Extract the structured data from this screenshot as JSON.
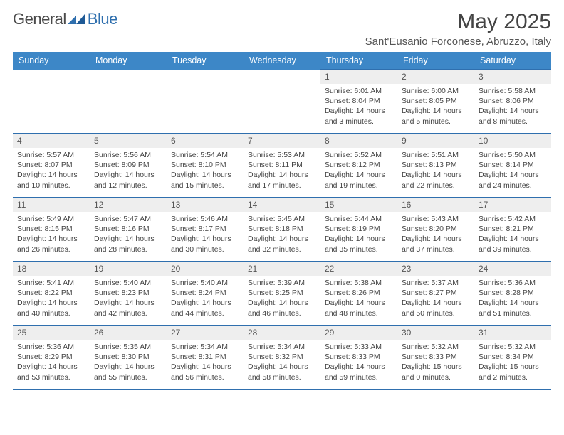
{
  "logo": {
    "word1": "General",
    "word2": "Blue"
  },
  "title": "May 2025",
  "location": "Sant'Eusanio Forconese, Abruzzo, Italy",
  "colors": {
    "header_bg": "#3d87c7",
    "border": "#2f6fae",
    "daynum_bg": "#eeeeee",
    "text": "#444444",
    "logo_gray": "#4a4a4a",
    "logo_blue": "#2f6fae"
  },
  "typography": {
    "month_title_pt": 30,
    "location_pt": 15,
    "header_pt": 12.5,
    "daynum_pt": 12,
    "body_pt": 10.5
  },
  "dayHeaders": [
    "Sunday",
    "Monday",
    "Tuesday",
    "Wednesday",
    "Thursday",
    "Friday",
    "Saturday"
  ],
  "weeks": [
    [
      null,
      null,
      null,
      null,
      {
        "n": "1",
        "sr": "6:01 AM",
        "ss": "8:04 PM",
        "dl": "14 hours and 3 minutes."
      },
      {
        "n": "2",
        "sr": "6:00 AM",
        "ss": "8:05 PM",
        "dl": "14 hours and 5 minutes."
      },
      {
        "n": "3",
        "sr": "5:58 AM",
        "ss": "8:06 PM",
        "dl": "14 hours and 8 minutes."
      }
    ],
    [
      {
        "n": "4",
        "sr": "5:57 AM",
        "ss": "8:07 PM",
        "dl": "14 hours and 10 minutes."
      },
      {
        "n": "5",
        "sr": "5:56 AM",
        "ss": "8:09 PM",
        "dl": "14 hours and 12 minutes."
      },
      {
        "n": "6",
        "sr": "5:54 AM",
        "ss": "8:10 PM",
        "dl": "14 hours and 15 minutes."
      },
      {
        "n": "7",
        "sr": "5:53 AM",
        "ss": "8:11 PM",
        "dl": "14 hours and 17 minutes."
      },
      {
        "n": "8",
        "sr": "5:52 AM",
        "ss": "8:12 PM",
        "dl": "14 hours and 19 minutes."
      },
      {
        "n": "9",
        "sr": "5:51 AM",
        "ss": "8:13 PM",
        "dl": "14 hours and 22 minutes."
      },
      {
        "n": "10",
        "sr": "5:50 AM",
        "ss": "8:14 PM",
        "dl": "14 hours and 24 minutes."
      }
    ],
    [
      {
        "n": "11",
        "sr": "5:49 AM",
        "ss": "8:15 PM",
        "dl": "14 hours and 26 minutes."
      },
      {
        "n": "12",
        "sr": "5:47 AM",
        "ss": "8:16 PM",
        "dl": "14 hours and 28 minutes."
      },
      {
        "n": "13",
        "sr": "5:46 AM",
        "ss": "8:17 PM",
        "dl": "14 hours and 30 minutes."
      },
      {
        "n": "14",
        "sr": "5:45 AM",
        "ss": "8:18 PM",
        "dl": "14 hours and 32 minutes."
      },
      {
        "n": "15",
        "sr": "5:44 AM",
        "ss": "8:19 PM",
        "dl": "14 hours and 35 minutes."
      },
      {
        "n": "16",
        "sr": "5:43 AM",
        "ss": "8:20 PM",
        "dl": "14 hours and 37 minutes."
      },
      {
        "n": "17",
        "sr": "5:42 AM",
        "ss": "8:21 PM",
        "dl": "14 hours and 39 minutes."
      }
    ],
    [
      {
        "n": "18",
        "sr": "5:41 AM",
        "ss": "8:22 PM",
        "dl": "14 hours and 40 minutes."
      },
      {
        "n": "19",
        "sr": "5:40 AM",
        "ss": "8:23 PM",
        "dl": "14 hours and 42 minutes."
      },
      {
        "n": "20",
        "sr": "5:40 AM",
        "ss": "8:24 PM",
        "dl": "14 hours and 44 minutes."
      },
      {
        "n": "21",
        "sr": "5:39 AM",
        "ss": "8:25 PM",
        "dl": "14 hours and 46 minutes."
      },
      {
        "n": "22",
        "sr": "5:38 AM",
        "ss": "8:26 PM",
        "dl": "14 hours and 48 minutes."
      },
      {
        "n": "23",
        "sr": "5:37 AM",
        "ss": "8:27 PM",
        "dl": "14 hours and 50 minutes."
      },
      {
        "n": "24",
        "sr": "5:36 AM",
        "ss": "8:28 PM",
        "dl": "14 hours and 51 minutes."
      }
    ],
    [
      {
        "n": "25",
        "sr": "5:36 AM",
        "ss": "8:29 PM",
        "dl": "14 hours and 53 minutes."
      },
      {
        "n": "26",
        "sr": "5:35 AM",
        "ss": "8:30 PM",
        "dl": "14 hours and 55 minutes."
      },
      {
        "n": "27",
        "sr": "5:34 AM",
        "ss": "8:31 PM",
        "dl": "14 hours and 56 minutes."
      },
      {
        "n": "28",
        "sr": "5:34 AM",
        "ss": "8:32 PM",
        "dl": "14 hours and 58 minutes."
      },
      {
        "n": "29",
        "sr": "5:33 AM",
        "ss": "8:33 PM",
        "dl": "14 hours and 59 minutes."
      },
      {
        "n": "30",
        "sr": "5:32 AM",
        "ss": "8:33 PM",
        "dl": "15 hours and 0 minutes."
      },
      {
        "n": "31",
        "sr": "5:32 AM",
        "ss": "8:34 PM",
        "dl": "15 hours and 2 minutes."
      }
    ]
  ],
  "labels": {
    "sunrise": "Sunrise:",
    "sunset": "Sunset:",
    "daylight": "Daylight:"
  }
}
